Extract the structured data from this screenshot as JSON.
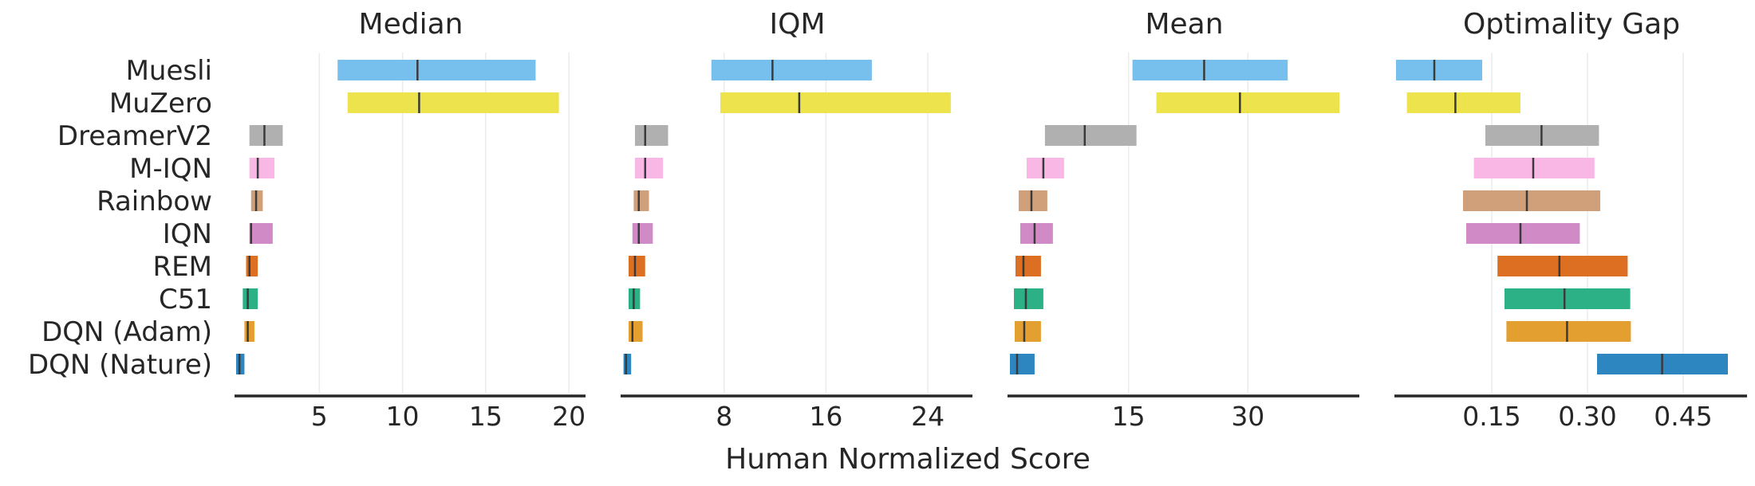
{
  "chart_data": {
    "type": "interval",
    "xlabel": "Human Normalized Score",
    "algorithms": [
      "Muesli",
      "MuZero",
      "DreamerV2",
      "M-IQN",
      "Rainbow",
      "IQN",
      "REM",
      "C51",
      "DQN (Adam)",
      "DQN (Nature)"
    ],
    "colors": [
      "#77bfec",
      "#ece34d",
      "#b0b0b0",
      "#f9b7e5",
      "#cfa07a",
      "#d08bc6",
      "#dc6f21",
      "#2cb086",
      "#e3a031",
      "#2e86c0"
    ],
    "panels": [
      {
        "title": "Median",
        "xlim": [
          0,
          21
        ],
        "ticks": [
          5,
          10,
          15,
          20
        ],
        "tick_labels": [
          "5",
          "10",
          "15",
          "20"
        ],
        "intervals": [
          {
            "low": 6.1,
            "point": 10.9,
            "high": 18.0
          },
          {
            "low": 6.7,
            "point": 11.0,
            "high": 19.4
          },
          {
            "low": 0.8,
            "point": 1.7,
            "high": 2.8
          },
          {
            "low": 0.8,
            "point": 1.3,
            "high": 2.3
          },
          {
            "low": 0.9,
            "point": 1.2,
            "high": 1.6
          },
          {
            "low": 0.8,
            "point": 0.9,
            "high": 2.2
          },
          {
            "low": 0.6,
            "point": 0.8,
            "high": 1.3
          },
          {
            "low": 0.4,
            "point": 0.7,
            "high": 1.3
          },
          {
            "low": 0.5,
            "point": 0.7,
            "high": 1.1
          },
          {
            "low": 0.0,
            "point": 0.2,
            "high": 0.5
          }
        ]
      },
      {
        "title": "IQM",
        "xlim": [
          0,
          27.5
        ],
        "ticks": [
          8,
          16,
          24
        ],
        "tick_labels": [
          "8",
          "16",
          "24"
        ],
        "intervals": [
          {
            "low": 7.0,
            "point": 11.8,
            "high": 19.6
          },
          {
            "low": 7.7,
            "point": 13.9,
            "high": 25.8
          },
          {
            "low": 1.0,
            "point": 1.8,
            "high": 3.6
          },
          {
            "low": 1.0,
            "point": 1.8,
            "high": 3.2
          },
          {
            "low": 0.9,
            "point": 1.3,
            "high": 2.1
          },
          {
            "low": 0.8,
            "point": 1.3,
            "high": 2.4
          },
          {
            "low": 0.5,
            "point": 1.0,
            "high": 1.8
          },
          {
            "low": 0.5,
            "point": 0.9,
            "high": 1.4
          },
          {
            "low": 0.5,
            "point": 0.8,
            "high": 1.6
          },
          {
            "low": 0.1,
            "point": 0.3,
            "high": 0.7
          }
        ]
      },
      {
        "title": "Mean",
        "xlim": [
          0,
          44
        ],
        "ticks": [
          15,
          30
        ],
        "tick_labels": [
          "15",
          "30"
        ],
        "intervals": [
          {
            "low": 15.5,
            "point": 24.5,
            "high": 35.0
          },
          {
            "low": 18.5,
            "point": 29.0,
            "high": 41.5
          },
          {
            "low": 4.5,
            "point": 9.5,
            "high": 16.0
          },
          {
            "low": 2.2,
            "point": 4.3,
            "high": 6.9
          },
          {
            "low": 1.2,
            "point": 2.8,
            "high": 4.8
          },
          {
            "low": 1.4,
            "point": 3.2,
            "high": 5.5
          },
          {
            "low": 0.8,
            "point": 1.8,
            "high": 4.0
          },
          {
            "low": 0.6,
            "point": 2.1,
            "high": 4.3
          },
          {
            "low": 0.7,
            "point": 1.9,
            "high": 4.0
          },
          {
            "low": 0.1,
            "point": 1.0,
            "high": 3.2
          }
        ]
      },
      {
        "title": "Optimality Gap",
        "xlim": [
          0.0,
          0.55
        ],
        "ticks": [
          0.15,
          0.3,
          0.45
        ],
        "tick_labels": [
          "0.15",
          "0.30",
          "0.45"
        ],
        "intervals": [
          {
            "low": 0.0,
            "point": 0.06,
            "high": 0.135
          },
          {
            "low": 0.017,
            "point": 0.093,
            "high": 0.195
          },
          {
            "low": 0.14,
            "point": 0.228,
            "high": 0.318
          },
          {
            "low": 0.122,
            "point": 0.215,
            "high": 0.311
          },
          {
            "low": 0.105,
            "point": 0.205,
            "high": 0.32
          },
          {
            "low": 0.11,
            "point": 0.195,
            "high": 0.288
          },
          {
            "low": 0.159,
            "point": 0.256,
            "high": 0.363
          },
          {
            "low": 0.17,
            "point": 0.264,
            "high": 0.367
          },
          {
            "low": 0.173,
            "point": 0.268,
            "high": 0.368
          },
          {
            "low": 0.315,
            "point": 0.417,
            "high": 0.52
          }
        ]
      }
    ]
  }
}
